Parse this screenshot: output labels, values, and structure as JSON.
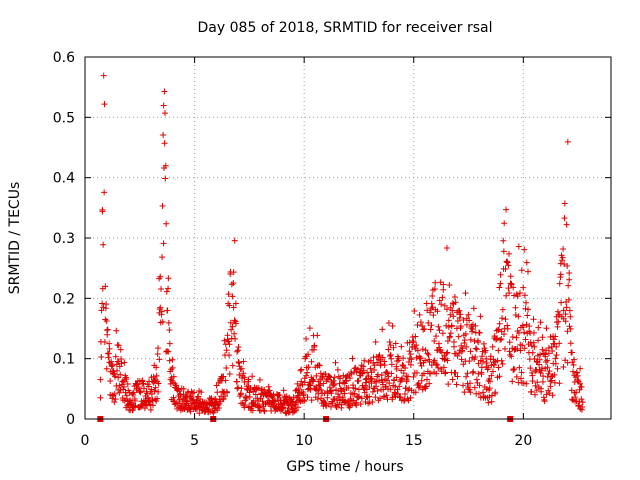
{
  "chart_data": {
    "type": "scatter",
    "title": "Day 085 of 2018, SRMTID for receiver rsal",
    "xlabel": "GPS time / hours",
    "ylabel": "SRMTID / TECUs",
    "xlim": [
      0,
      24
    ],
    "ylim": [
      0,
      0.6
    ],
    "xticks": [
      0,
      5,
      10,
      15,
      20
    ],
    "xtick_labels": [
      "0",
      "5",
      "10",
      "15",
      "20"
    ],
    "yticks": [
      0,
      0.1,
      0.2,
      0.3,
      0.4,
      0.5,
      0.6
    ],
    "ytick_labels": [
      "0",
      "0.1",
      "0.2",
      "0.3",
      "0.4",
      "0.5",
      "0.6"
    ],
    "grid": true,
    "marker": "plus",
    "color": "#e00000",
    "zero_markers_x": [
      0.7,
      5.85,
      11.0,
      19.4
    ],
    "envelope": [
      [
        0.7,
        0.04
      ],
      [
        0.8,
        0.28
      ],
      [
        0.9,
        0.37
      ],
      [
        1.0,
        0.12
      ],
      [
        1.2,
        0.07
      ],
      [
        1.5,
        0.09
      ],
      [
        1.8,
        0.06
      ],
      [
        2.0,
        0.03
      ],
      [
        2.5,
        0.05
      ],
      [
        3.0,
        0.04
      ],
      [
        3.3,
        0.07
      ],
      [
        3.5,
        0.25
      ],
      [
        3.6,
        0.45
      ],
      [
        3.75,
        0.22
      ],
      [
        3.9,
        0.08
      ],
      [
        4.2,
        0.04
      ],
      [
        5.0,
        0.03
      ],
      [
        5.5,
        0.02
      ],
      [
        6.0,
        0.03
      ],
      [
        6.3,
        0.06
      ],
      [
        6.6,
        0.16
      ],
      [
        6.8,
        0.25
      ],
      [
        7.0,
        0.07
      ],
      [
        7.5,
        0.04
      ],
      [
        8.5,
        0.03
      ],
      [
        9.5,
        0.025
      ],
      [
        10.0,
        0.07
      ],
      [
        10.5,
        0.09
      ],
      [
        11.0,
        0.05
      ],
      [
        12.0,
        0.05
      ],
      [
        13.0,
        0.07
      ],
      [
        14.0,
        0.09
      ],
      [
        14.5,
        0.07
      ],
      [
        15.0,
        0.1
      ],
      [
        15.5,
        0.13
      ],
      [
        16.0,
        0.16
      ],
      [
        16.5,
        0.17
      ],
      [
        17.0,
        0.13
      ],
      [
        17.5,
        0.12
      ],
      [
        18.0,
        0.1
      ],
      [
        18.5,
        0.07
      ],
      [
        18.8,
        0.11
      ],
      [
        19.0,
        0.22
      ],
      [
        19.3,
        0.24
      ],
      [
        19.5,
        0.14
      ],
      [
        20.0,
        0.16
      ],
      [
        20.5,
        0.1
      ],
      [
        21.0,
        0.08
      ],
      [
        21.5,
        0.11
      ],
      [
        21.8,
        0.22
      ],
      [
        22.0,
        0.28
      ],
      [
        22.2,
        0.08
      ],
      [
        22.5,
        0.05
      ],
      [
        22.7,
        0.04
      ]
    ]
  }
}
